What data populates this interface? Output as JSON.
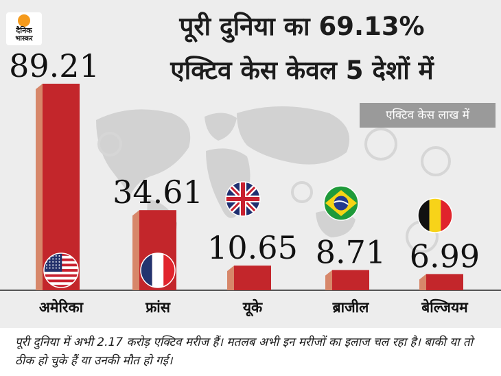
{
  "logo": {
    "line1": "दैनिक",
    "line2": "भास्कर"
  },
  "title": {
    "line1": "पूरी दुनिया का 69.13%",
    "line2": "एक्टिव केस केवल 5 देशों में"
  },
  "unit_label": "एक्टिव केस लाख में",
  "footer_text": "पूरी दुनिया में अभी 2.17 करोड़ एक्टिव मरीज हैं। मतलब अभी इन मरीजों का इलाज चल रहा है। बाकी या तो ठीक हो चुके हैं या उनकी मौत हो गई।",
  "colors": {
    "bar_front": "#c3262b",
    "bar_side": "#d7876a",
    "background": "#ededed",
    "unit_box": "#9a9a9a"
  },
  "chart_data": {
    "type": "bar",
    "categories": [
      "अमेरिका",
      "फ्रांस",
      "यूके",
      "ब्राजील",
      "बेल्जियम"
    ],
    "values": [
      89.21,
      34.61,
      10.65,
      8.71,
      6.99
    ],
    "value_labels": [
      "89.21",
      "34.61",
      "10.65",
      "8.71",
      "6.99"
    ],
    "flags": [
      "usa-flag-icon",
      "france-flag-icon",
      "uk-flag-icon",
      "brazil-flag-icon",
      "belgium-flag-icon"
    ],
    "ylim": [
      0,
      100
    ],
    "grid": false,
    "legend": "none"
  }
}
